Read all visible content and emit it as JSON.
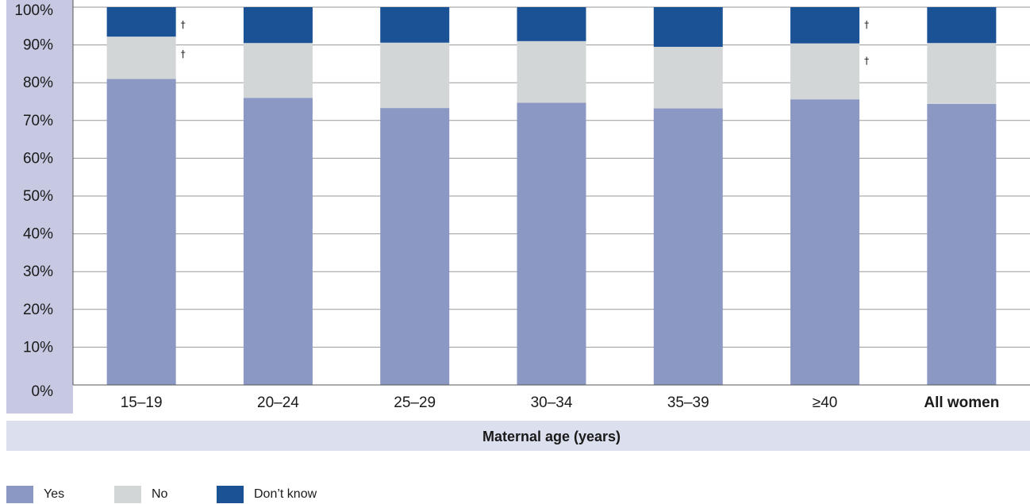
{
  "colors": {
    "yes": "#8c98c4",
    "no": "#d2d6d7",
    "dont_know": "#1b5295",
    "axis_panel": "#c7c9e2",
    "xtitle_panel": "#dcdfee",
    "gridline": "#9a9a9a"
  },
  "chart_data": {
    "type": "bar",
    "stacked": true,
    "xlabel": "Maternal age (years)",
    "ylabel": "",
    "ylim": [
      0,
      100
    ],
    "yticks": [
      "0%",
      "10%",
      "20%",
      "30%",
      "40%",
      "50%",
      "60%",
      "70%",
      "80%",
      "90%",
      "100%"
    ],
    "ytick_values": [
      0,
      10,
      20,
      30,
      40,
      50,
      60,
      70,
      80,
      90,
      100
    ],
    "grid": true,
    "legend_position": "bottom-left",
    "categories": [
      "15–19",
      "20–24",
      "25–29",
      "30–34",
      "35–39",
      "≥40",
      "All women"
    ],
    "bold_categories": [
      "All women"
    ],
    "series": [
      {
        "name": "Yes",
        "color_key": "yes",
        "values": [
          81,
          76,
          73.3,
          74.7,
          73.2,
          75.6,
          74.4
        ]
      },
      {
        "name": "No",
        "color_key": "no",
        "values": [
          11.2,
          14.5,
          17.3,
          16.3,
          16.3,
          14.8,
          16.1
        ]
      },
      {
        "name": "Don’t know",
        "color_key": "dont_know",
        "values": [
          7.8,
          9.5,
          9.4,
          9,
          10.5,
          9.6,
          9.5
        ]
      }
    ],
    "annotations": [
      {
        "category": "15–19",
        "series": "Don’t know",
        "text": "†"
      },
      {
        "category": "15–19",
        "series": "No",
        "text": "†"
      },
      {
        "category": "≥40",
        "series": "Don’t know",
        "text": "†"
      },
      {
        "category": "≥40",
        "series": "No",
        "text": "†"
      }
    ]
  }
}
